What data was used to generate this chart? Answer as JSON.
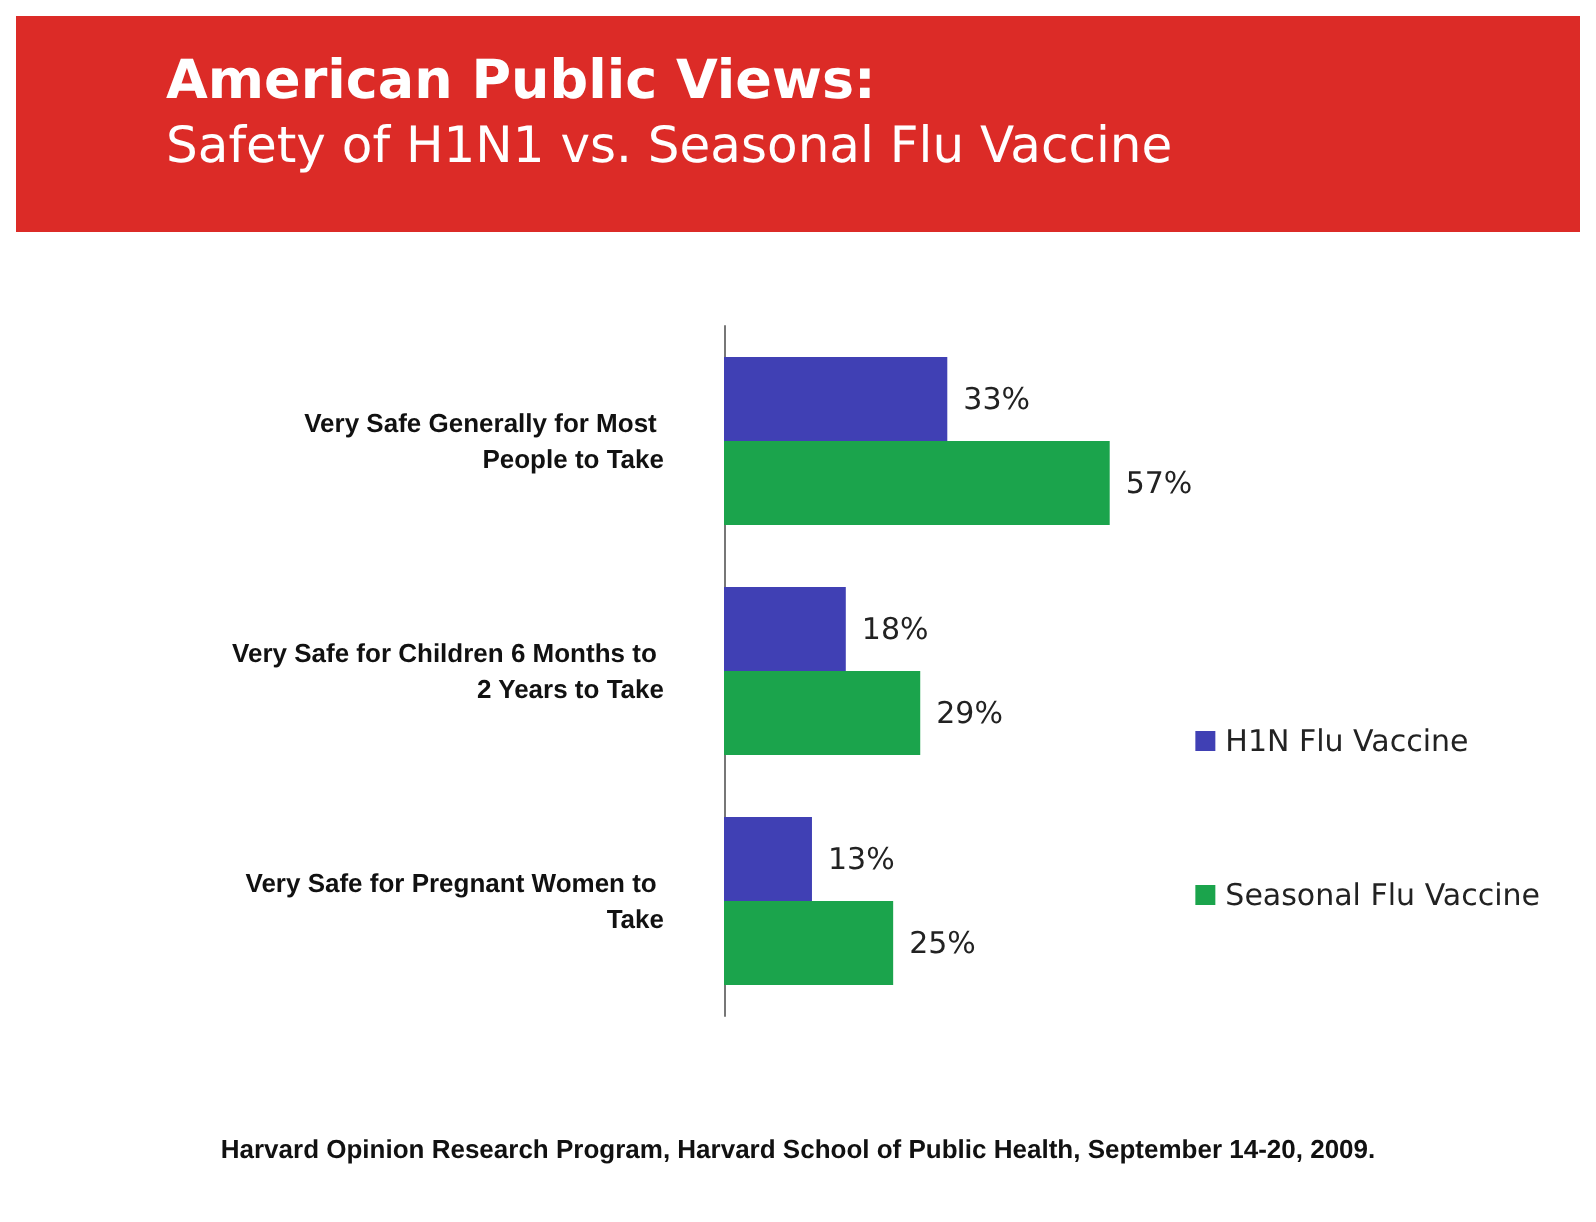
{
  "chart_data": {
    "type": "bar",
    "orientation": "horizontal",
    "title": "American Public Views:",
    "subtitle": "Safety of H1N1 vs. Seasonal Flu Vaccine",
    "categories": [
      "Very Safe Generally for Most People to Take",
      "Very Safe for Children 6 Months to 2 Years to Take",
      "Very Safe for Pregnant Women to Take"
    ],
    "series": [
      {
        "name": "H1N Flu Vaccine",
        "color": "#4040b4",
        "values": [
          33,
          18,
          13
        ],
        "value_labels": [
          "33%",
          "18%",
          "13%"
        ]
      },
      {
        "name": "Seasonal Flu Vaccine",
        "color": "#1ba44c",
        "values": [
          57,
          29,
          25
        ],
        "value_labels": [
          "57%",
          "29%",
          "25%"
        ]
      }
    ],
    "legend": "right",
    "grid": false,
    "annotations": [
      "Harvard Opinion Research Program, Harvard School of Public Health, September 14-20, 2009."
    ]
  }
}
